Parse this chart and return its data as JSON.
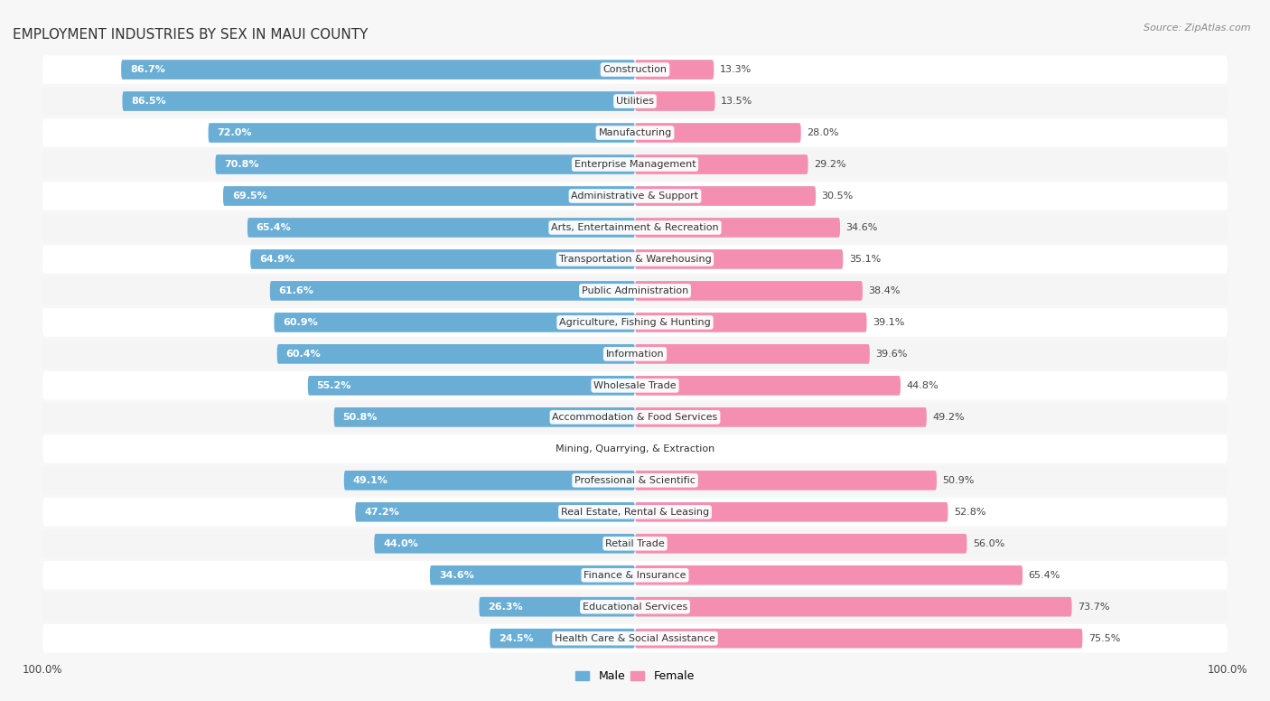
{
  "title": "EMPLOYMENT INDUSTRIES BY SEX IN MAUI COUNTY",
  "source": "Source: ZipAtlas.com",
  "industries": [
    "Construction",
    "Utilities",
    "Manufacturing",
    "Enterprise Management",
    "Administrative & Support",
    "Arts, Entertainment & Recreation",
    "Transportation & Warehousing",
    "Public Administration",
    "Agriculture, Fishing & Hunting",
    "Information",
    "Wholesale Trade",
    "Accommodation & Food Services",
    "Mining, Quarrying, & Extraction",
    "Professional & Scientific",
    "Real Estate, Rental & Leasing",
    "Retail Trade",
    "Finance & Insurance",
    "Educational Services",
    "Health Care & Social Assistance"
  ],
  "male": [
    86.7,
    86.5,
    72.0,
    70.8,
    69.5,
    65.4,
    64.9,
    61.6,
    60.9,
    60.4,
    55.2,
    50.8,
    0.0,
    49.1,
    47.2,
    44.0,
    34.6,
    26.3,
    24.5
  ],
  "female": [
    13.3,
    13.5,
    28.0,
    29.2,
    30.5,
    34.6,
    35.1,
    38.4,
    39.1,
    39.6,
    44.8,
    49.2,
    0.0,
    50.9,
    52.8,
    56.0,
    65.4,
    73.7,
    75.5
  ],
  "male_color": "#6aaed6",
  "female_color": "#f48fb1",
  "row_color_odd": "#f5f5f5",
  "row_color_even": "#ffffff",
  "title_fontsize": 11,
  "label_fontsize": 8,
  "tick_fontsize": 8.5,
  "source_fontsize": 8
}
